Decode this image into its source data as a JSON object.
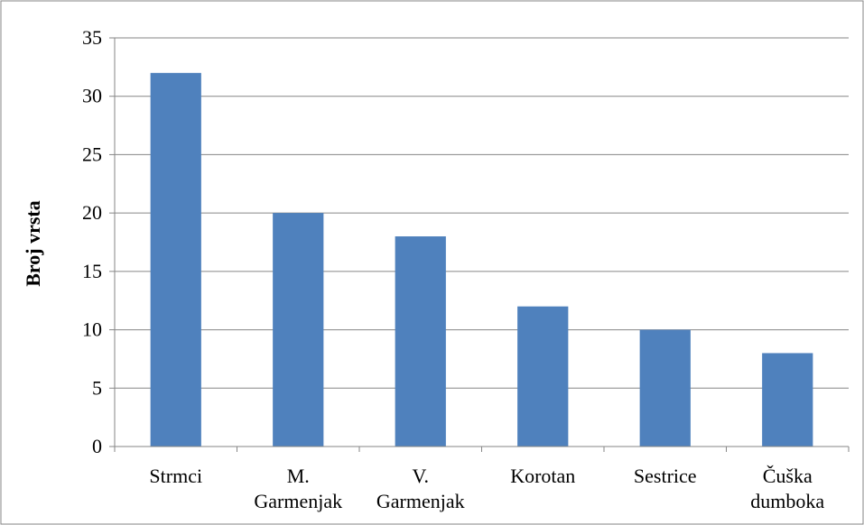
{
  "chart_data": {
    "type": "bar",
    "categories": [
      [
        "Strmci"
      ],
      [
        "M.",
        "Garmenjak"
      ],
      [
        "V.",
        "Garmenjak"
      ],
      [
        "Korotan"
      ],
      [
        "Sestrice"
      ],
      [
        "Čuška",
        "dumboka"
      ]
    ],
    "values": [
      32,
      20,
      18,
      12,
      10,
      8
    ],
    "ylabel": "Broj vrsta",
    "xlabel": "",
    "ylim": [
      0,
      35
    ],
    "ytick_step": 5,
    "grid": "horizontal",
    "colors": {
      "bar": "#4f81bd",
      "grid": "#868686",
      "axis": "#868686",
      "border": "#868686"
    }
  }
}
